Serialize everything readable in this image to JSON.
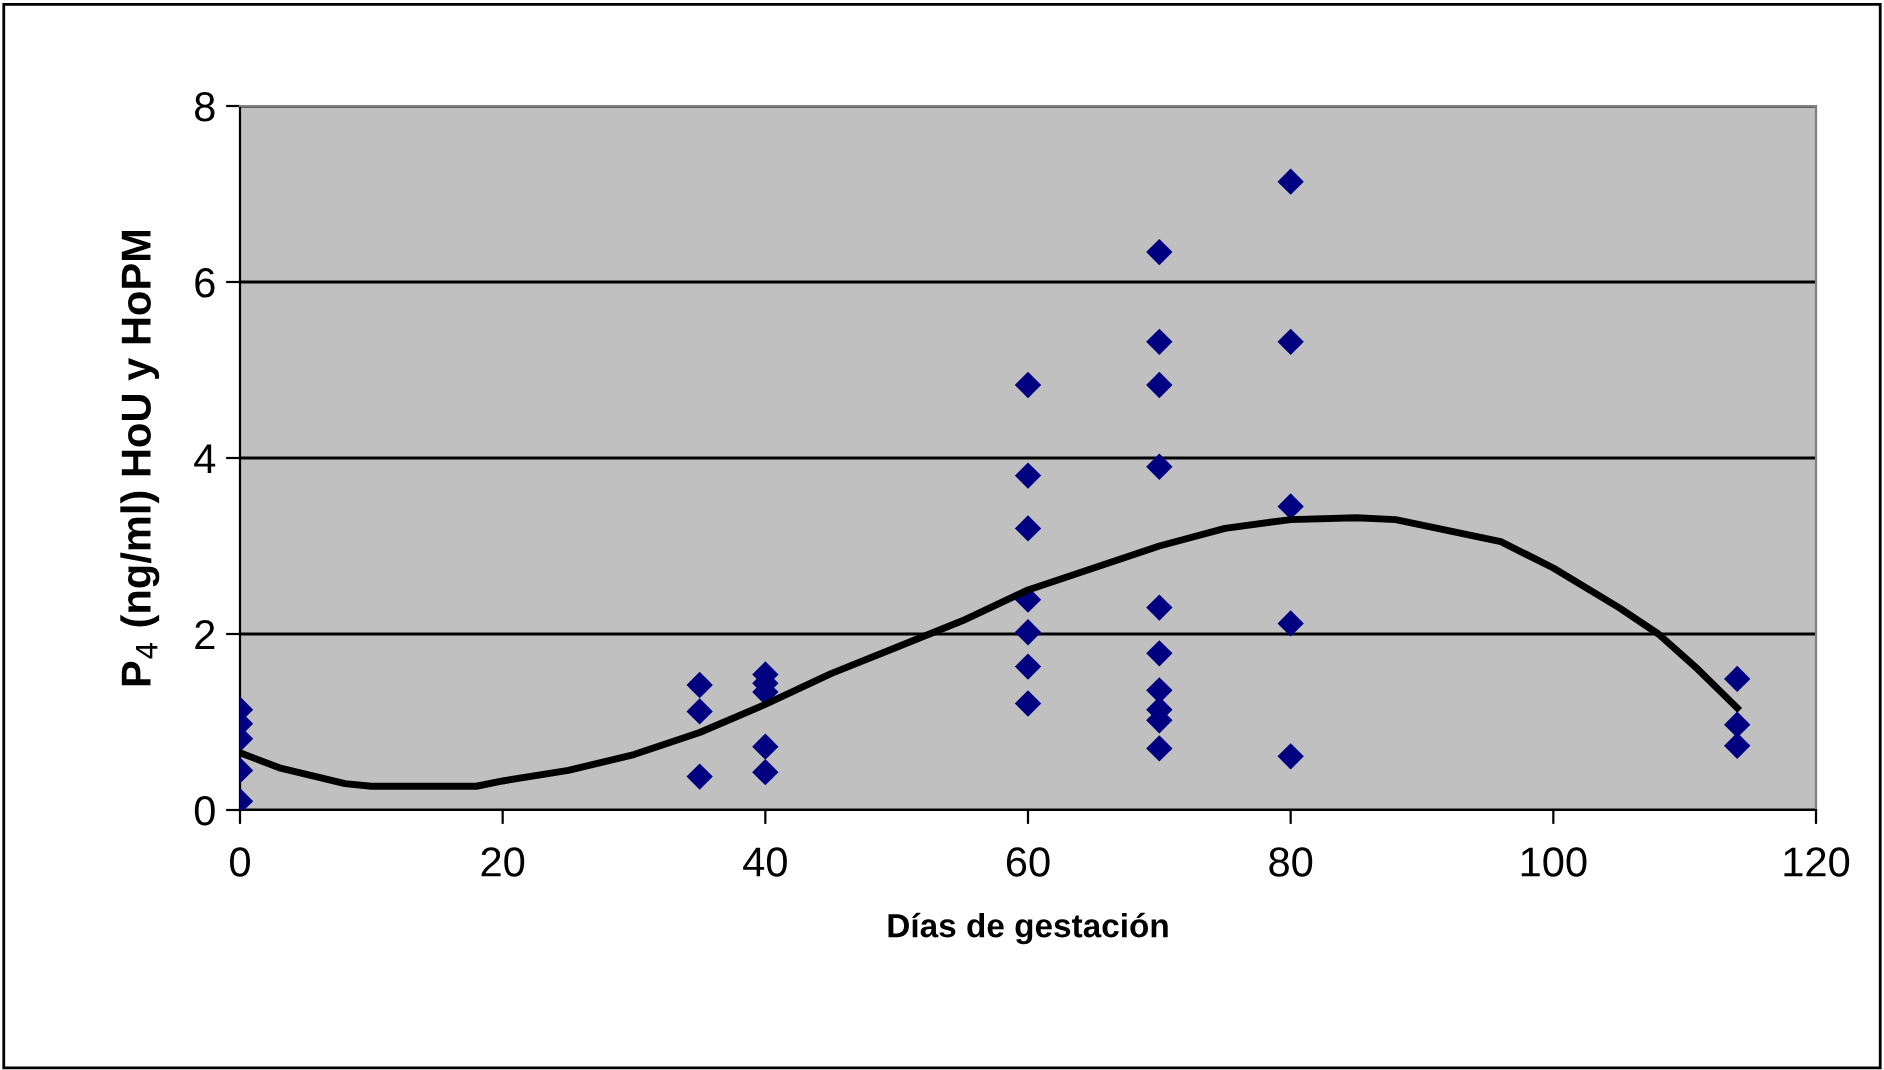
{
  "chart_data": {
    "type": "scatter",
    "xlabel": "Días de gestación",
    "ylabel": "P$_{4}$ (ng/ml) HoU y HoPM",
    "xlim": [
      0,
      120
    ],
    "xticks": [
      0,
      20,
      40,
      60,
      80,
      100,
      120
    ],
    "ylim": [
      0,
      8
    ],
    "yticks": [
      0,
      2,
      4,
      6,
      8
    ],
    "grid": "y",
    "legend": false,
    "series": [
      {
        "marker": "diamond",
        "color": "#000080",
        "x": [
          0,
          0,
          0,
          0,
          0,
          35,
          35,
          35,
          40,
          40,
          40,
          40,
          40,
          60,
          60,
          60,
          60,
          60,
          60,
          60,
          70,
          70,
          70,
          70,
          70,
          70,
          70,
          70,
          70,
          70,
          80,
          80,
          80,
          80,
          80,
          114,
          114,
          114
        ],
        "values": [
          1.14,
          0.98,
          0.81,
          0.45,
          0.1,
          1.42,
          1.12,
          0.38,
          1.54,
          1.44,
          1.34,
          0.72,
          0.43,
          4.83,
          3.8,
          3.2,
          2.39,
          2.02,
          1.63,
          1.21,
          6.34,
          5.32,
          4.83,
          3.9,
          2.3,
          1.78,
          1.36,
          1.14,
          1.02,
          0.7,
          7.14,
          5.32,
          3.45,
          2.12,
          0.61,
          1.49,
          0.97,
          0.73
        ]
      },
      {
        "type": "line",
        "marker": "none",
        "color": "#000000",
        "line_style": "solid",
        "x": [
          0,
          3,
          8,
          10,
          15,
          18,
          20,
          25,
          30,
          35,
          40,
          45,
          50,
          55,
          60,
          65,
          70,
          75,
          80,
          85,
          88,
          96,
          100,
          105,
          108,
          111,
          114
        ],
        "values": [
          0.65,
          0.48,
          0.3,
          0.27,
          0.27,
          0.27,
          0.33,
          0.45,
          0.63,
          0.88,
          1.2,
          1.55,
          1.85,
          2.15,
          2.5,
          2.75,
          3.0,
          3.2,
          3.3,
          3.32,
          3.3,
          3.05,
          2.75,
          2.3,
          2.0,
          1.6,
          1.16
        ]
      }
    ]
  }
}
